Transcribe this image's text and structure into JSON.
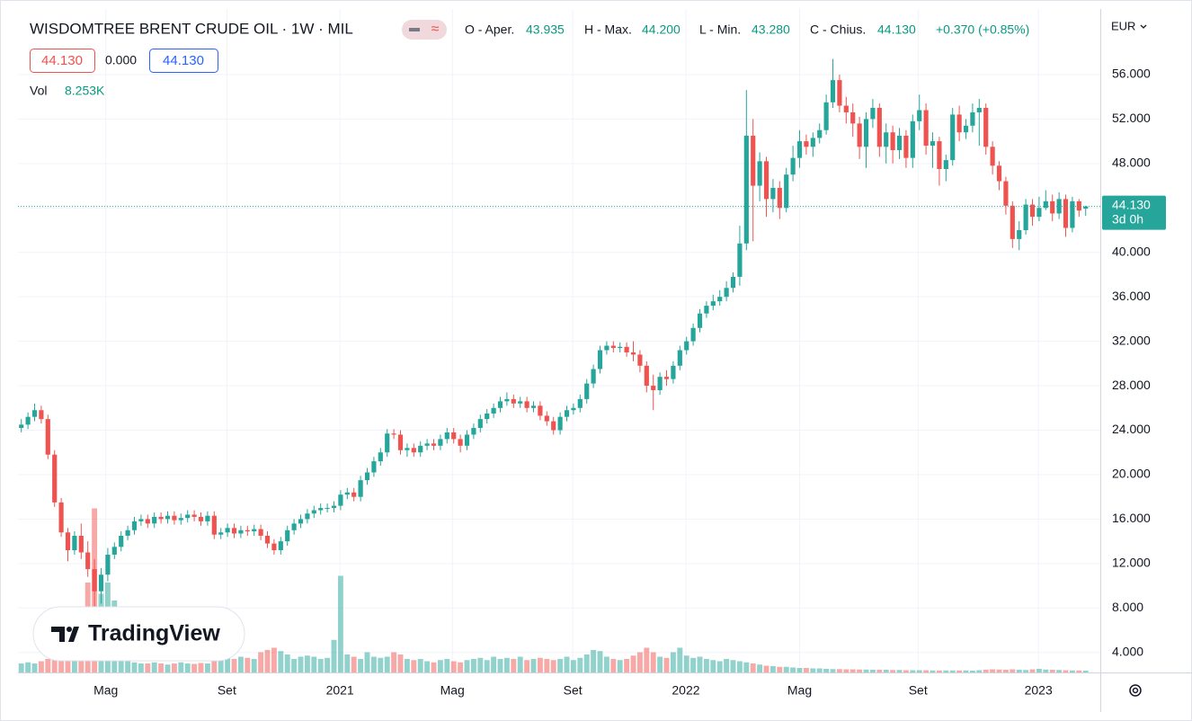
{
  "header": {
    "title": "WISDOMTREE BRENT CRUDE OIL · 1W · MIL",
    "ohlc_legend": [
      {
        "label": "O - Aper.",
        "value": "43.935"
      },
      {
        "label": "H - Max.",
        "value": "44.200"
      },
      {
        "label": "L - Min.",
        "value": "43.280"
      },
      {
        "label": "C - Chius.",
        "value": "44.130"
      }
    ],
    "change": "+0.370 (+0.85%)",
    "bid": "44.130",
    "spread": "0.000",
    "ask": "44.130",
    "volume_label": "Vol",
    "volume_value": "8.253K",
    "currency": "EUR",
    "price_tag": "44.130",
    "countdown": "3d 0h",
    "logo": "TradingView"
  },
  "chart_data": {
    "type": "candlestick",
    "up_color": "#26a69a",
    "down_color": "#ef5350",
    "grid": true,
    "xlim": [
      -0.5,
      162.2
    ],
    "xticks": [
      {
        "value": 12.7,
        "label": "Mag"
      },
      {
        "value": 30.9,
        "label": "Set"
      },
      {
        "value": 47.9,
        "label": "2021"
      },
      {
        "value": 64.8,
        "label": "Mag"
      },
      {
        "value": 82.9,
        "label": "Set"
      },
      {
        "value": 99.9,
        "label": "2022"
      },
      {
        "value": 117.0,
        "label": "Mag"
      },
      {
        "value": 134.8,
        "label": "Set"
      },
      {
        "value": 152.9,
        "label": "2023"
      }
    ],
    "ylim": [
      2.2,
      61.9
    ],
    "yticks": [
      {
        "value": 4,
        "label": "4.000"
      },
      {
        "value": 8,
        "label": "8.000"
      },
      {
        "value": 12,
        "label": "12.000"
      },
      {
        "value": 16,
        "label": "16.000"
      },
      {
        "value": 20,
        "label": "20.000"
      },
      {
        "value": 24,
        "label": "24.000"
      },
      {
        "value": 28,
        "label": "28.000"
      },
      {
        "value": 32,
        "label": "32.000"
      },
      {
        "value": 36,
        "label": "36.000"
      },
      {
        "value": 40,
        "label": "40.000"
      },
      {
        "value": 44,
        "label": "44.000"
      },
      {
        "value": 48,
        "label": "48.000"
      },
      {
        "value": 52,
        "label": "52.000"
      },
      {
        "value": 56,
        "label": "56.000"
      }
    ],
    "vlim": [
      0,
      800
    ],
    "open": [
      24.2,
      24.5,
      25.2,
      25.8,
      25.0,
      21.8,
      17.5,
      14.8,
      13.2,
      14.5,
      13.0,
      11.5,
      9.5,
      11.0,
      12.8,
      13.5,
      14.5,
      15.0,
      15.8,
      16.0,
      15.6,
      16.2,
      16.0,
      16.3,
      15.9,
      16.1,
      16.4,
      16.2,
      15.8,
      16.3,
      14.6,
      14.8,
      15.2,
      14.7,
      15.0,
      14.9,
      15.1,
      14.5,
      13.8,
      13.2,
      14.0,
      15.0,
      15.6,
      16.0,
      16.5,
      16.8,
      17.0,
      17.0,
      17.2,
      18.2,
      18.4,
      18.0,
      19.5,
      20.2,
      21.2,
      22.0,
      23.7,
      23.6,
      22.2,
      22.4,
      22.0,
      22.6,
      22.8,
      22.6,
      23.2,
      23.8,
      23.2,
      22.6,
      23.6,
      24.2,
      25.0,
      25.5,
      26.0,
      26.6,
      26.8,
      26.4,
      26.6,
      26.0,
      26.2,
      25.3,
      24.8,
      24.0,
      25.2,
      25.8,
      26.0,
      26.8,
      28.2,
      29.5,
      31.2,
      31.6,
      31.4,
      31.5,
      31.0,
      30.8,
      29.8,
      28.0,
      27.6,
      28.8,
      28.6,
      29.8,
      31.2,
      32.0,
      33.2,
      34.5,
      35.2,
      35.6,
      36.0,
      36.8,
      37.8,
      40.8,
      50.5,
      46.0,
      48.2,
      44.8,
      45.8,
      44.0,
      47.0,
      48.5,
      50.0,
      49.5,
      50.3,
      51.0,
      53.5,
      55.5,
      53.2,
      52.6,
      51.6,
      49.5,
      52.0,
      53.0,
      49.5,
      50.8,
      49.2,
      50.5,
      48.5,
      51.8,
      52.8,
      49.6,
      50.0,
      47.5,
      48.3,
      52.4,
      50.8,
      51.4,
      52.6,
      53.0,
      49.5,
      47.8,
      46.4,
      44.2,
      41.2,
      42.0,
      44.3,
      43.2,
      44.0,
      44.6,
      43.5,
      44.8,
      42.2,
      44.6,
      43.935
    ],
    "high": [
      25.0,
      25.6,
      26.4,
      26.2,
      25.4,
      22.2,
      17.9,
      15.2,
      14.9,
      15.6,
      14.0,
      12.4,
      11.6,
      13.4,
      13.9,
      14.9,
      15.4,
      16.2,
      16.4,
      16.4,
      16.6,
      16.6,
      16.7,
      16.7,
      16.5,
      16.8,
      16.8,
      16.6,
      16.7,
      16.7,
      15.2,
      15.6,
      15.6,
      15.4,
      15.4,
      15.5,
      15.5,
      14.9,
      14.2,
      14.4,
      15.4,
      16.0,
      16.4,
      16.9,
      17.2,
      17.4,
      17.4,
      17.6,
      18.6,
      18.8,
      18.8,
      19.9,
      20.6,
      21.6,
      22.4,
      24.1,
      24.1,
      24.0,
      22.8,
      22.8,
      23.0,
      23.2,
      23.2,
      23.6,
      24.2,
      24.2,
      23.6,
      24.0,
      24.6,
      25.4,
      25.9,
      26.4,
      27.0,
      27.4,
      27.2,
      27.0,
      27.0,
      26.6,
      26.6,
      25.7,
      25.2,
      25.6,
      26.2,
      26.4,
      27.2,
      28.6,
      29.9,
      31.6,
      32.0,
      32.0,
      31.9,
      31.9,
      32.0,
      31.2,
      30.2,
      29.0,
      29.2,
      29.4,
      30.2,
      31.6,
      32.4,
      33.6,
      34.9,
      35.6,
      36.2,
      36.6,
      37.4,
      38.2,
      42.4,
      54.6,
      52.0,
      49.0,
      48.6,
      46.6,
      46.4,
      47.6,
      49.6,
      51.0,
      50.6,
      50.8,
      51.6,
      54.2,
      57.4,
      56.0,
      54.0,
      53.4,
      52.2,
      52.6,
      53.8,
      53.4,
      51.6,
      51.4,
      51.2,
      51.0,
      52.4,
      54.2,
      53.4,
      50.8,
      50.4,
      48.8,
      53.0,
      53.2,
      52.0,
      53.4,
      53.8,
      53.4,
      50.0,
      48.2,
      46.8,
      44.6,
      42.8,
      44.8,
      44.8,
      45.0,
      45.6,
      45.2,
      45.4,
      45.2,
      45.0,
      44.8,
      44.2
    ],
    "low": [
      23.8,
      24.1,
      24.8,
      24.6,
      21.4,
      17.1,
      14.4,
      12.2,
      12.8,
      12.4,
      10.8,
      7.0,
      8.4,
      10.4,
      12.4,
      13.1,
      14.1,
      14.6,
      15.4,
      15.2,
      15.2,
      15.6,
      15.6,
      15.5,
      15.5,
      15.7,
      15.8,
      15.4,
      15.4,
      14.2,
      14.2,
      14.4,
      14.3,
      14.3,
      14.5,
      14.5,
      14.1,
      13.4,
      12.8,
      12.8,
      13.6,
      14.6,
      15.2,
      15.6,
      16.1,
      16.4,
      16.6,
      16.6,
      16.8,
      17.8,
      17.6,
      17.6,
      19.1,
      19.8,
      20.8,
      21.6,
      23.2,
      21.8,
      21.6,
      21.6,
      21.6,
      22.2,
      22.2,
      22.2,
      22.8,
      22.8,
      22.0,
      22.2,
      23.2,
      23.8,
      24.6,
      25.1,
      25.6,
      26.2,
      26.0,
      26.0,
      25.6,
      25.6,
      24.9,
      24.4,
      23.6,
      23.6,
      24.8,
      25.4,
      25.6,
      26.4,
      27.8,
      29.1,
      30.8,
      31.0,
      31.0,
      30.6,
      30.2,
      29.2,
      27.4,
      25.8,
      27.2,
      28.0,
      28.2,
      29.4,
      30.8,
      31.6,
      32.8,
      34.1,
      34.8,
      35.2,
      35.6,
      36.4,
      37.0,
      40.2,
      41.0,
      44.6,
      43.2,
      43.6,
      43.0,
      43.6,
      46.4,
      47.6,
      48.8,
      48.6,
      49.8,
      50.6,
      53.0,
      52.6,
      51.6,
      50.4,
      48.4,
      47.6,
      51.2,
      48.6,
      48.0,
      48.0,
      48.4,
      47.6,
      47.6,
      51.0,
      48.8,
      47.6,
      46.0,
      46.4,
      47.8,
      50.0,
      50.2,
      50.8,
      49.6,
      48.8,
      47.0,
      45.6,
      43.4,
      40.4,
      40.2,
      41.6,
      42.4,
      42.8,
      43.8,
      42.8,
      43.0,
      41.4,
      41.8,
      43.2,
      43.28
    ],
    "close": [
      24.5,
      25.2,
      25.8,
      25.0,
      21.8,
      17.5,
      14.8,
      13.2,
      14.5,
      13.0,
      11.5,
      9.5,
      11.0,
      12.8,
      13.5,
      14.5,
      15.0,
      15.8,
      16.0,
      15.6,
      16.2,
      16.0,
      16.3,
      15.9,
      16.1,
      16.4,
      16.2,
      15.8,
      16.3,
      14.6,
      14.8,
      15.2,
      14.7,
      15.0,
      14.9,
      15.1,
      14.5,
      13.8,
      13.2,
      14.0,
      15.0,
      15.6,
      16.0,
      16.5,
      16.8,
      17.0,
      17.0,
      17.2,
      18.2,
      18.4,
      18.0,
      19.5,
      20.2,
      21.2,
      22.0,
      23.7,
      23.6,
      22.2,
      22.4,
      22.0,
      22.6,
      22.8,
      22.6,
      23.2,
      23.8,
      23.2,
      22.6,
      23.6,
      24.2,
      25.0,
      25.5,
      26.0,
      26.6,
      26.8,
      26.4,
      26.6,
      26.0,
      26.2,
      25.3,
      24.8,
      24.0,
      25.2,
      25.8,
      26.0,
      26.8,
      28.2,
      29.5,
      31.2,
      31.6,
      31.4,
      31.5,
      31.0,
      30.8,
      29.8,
      28.0,
      27.6,
      28.8,
      28.6,
      29.8,
      31.2,
      32.0,
      33.2,
      34.5,
      35.2,
      35.6,
      36.0,
      36.8,
      37.8,
      40.8,
      50.5,
      46.0,
      48.2,
      44.8,
      45.8,
      44.0,
      47.0,
      48.5,
      50.0,
      49.5,
      50.3,
      51.0,
      53.5,
      55.5,
      53.2,
      52.6,
      51.6,
      49.5,
      52.0,
      53.0,
      49.5,
      50.8,
      49.2,
      50.5,
      48.5,
      51.8,
      52.8,
      49.6,
      50.0,
      47.5,
      48.3,
      52.4,
      50.8,
      51.4,
      52.6,
      53.0,
      49.5,
      47.8,
      46.4,
      44.2,
      41.2,
      42.0,
      44.3,
      43.2,
      44.0,
      44.6,
      43.5,
      44.8,
      42.2,
      44.6,
      43.76,
      44.13
    ],
    "volume": [
      40,
      45,
      40,
      50,
      60,
      70,
      80,
      90,
      110,
      150,
      400,
      730,
      350,
      400,
      320,
      90,
      50,
      45,
      40,
      40,
      45,
      40,
      35,
      40,
      45,
      40,
      38,
      42,
      40,
      70,
      75,
      65,
      60,
      70,
      65,
      60,
      90,
      100,
      110,
      95,
      80,
      60,
      70,
      75,
      70,
      60,
      65,
      145,
      430,
      80,
      70,
      60,
      90,
      70,
      65,
      70,
      90,
      80,
      60,
      55,
      60,
      50,
      45,
      55,
      60,
      50,
      45,
      55,
      60,
      65,
      55,
      70,
      60,
      65,
      60,
      70,
      55,
      60,
      65,
      60,
      55,
      60,
      70,
      55,
      65,
      80,
      100,
      95,
      70,
      60,
      55,
      60,
      75,
      90,
      110,
      90,
      70,
      65,
      90,
      110,
      75,
      65,
      70,
      60,
      55,
      50,
      60,
      55,
      50,
      45,
      40,
      35,
      30,
      28,
      25,
      25,
      22,
      20,
      20,
      18,
      18,
      16,
      15,
      15,
      14,
      14,
      13,
      13,
      12,
      12,
      12,
      11,
      11,
      10,
      10,
      10,
      10,
      9,
      9,
      9,
      9,
      9,
      9,
      8,
      10,
      12,
      14,
      13,
      12,
      14,
      12,
      11,
      14,
      16,
      13,
      12,
      11,
      10,
      9,
      9,
      8.253
    ]
  }
}
